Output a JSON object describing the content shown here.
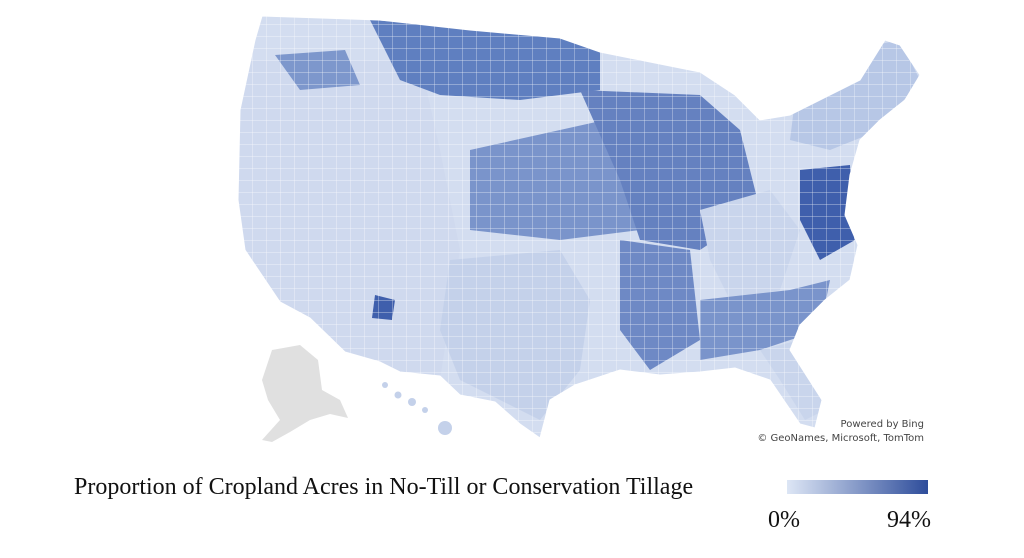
{
  "map": {
    "title": "Proportion of Cropland Acres in No-Till or Conservation Tillage",
    "attribution": {
      "powered_by": "Powered by Bing",
      "sources": "© GeoNames, Microsoft, TomTom"
    },
    "legend": {
      "min_label": "0%",
      "max_label": "94%",
      "min_value": 0,
      "max_value": 94,
      "color_low": "#dde6f5",
      "color_high": "#2e4d9b"
    },
    "colors": {
      "no_data": "#e0e0e0",
      "border": "#ffffff"
    }
  }
}
